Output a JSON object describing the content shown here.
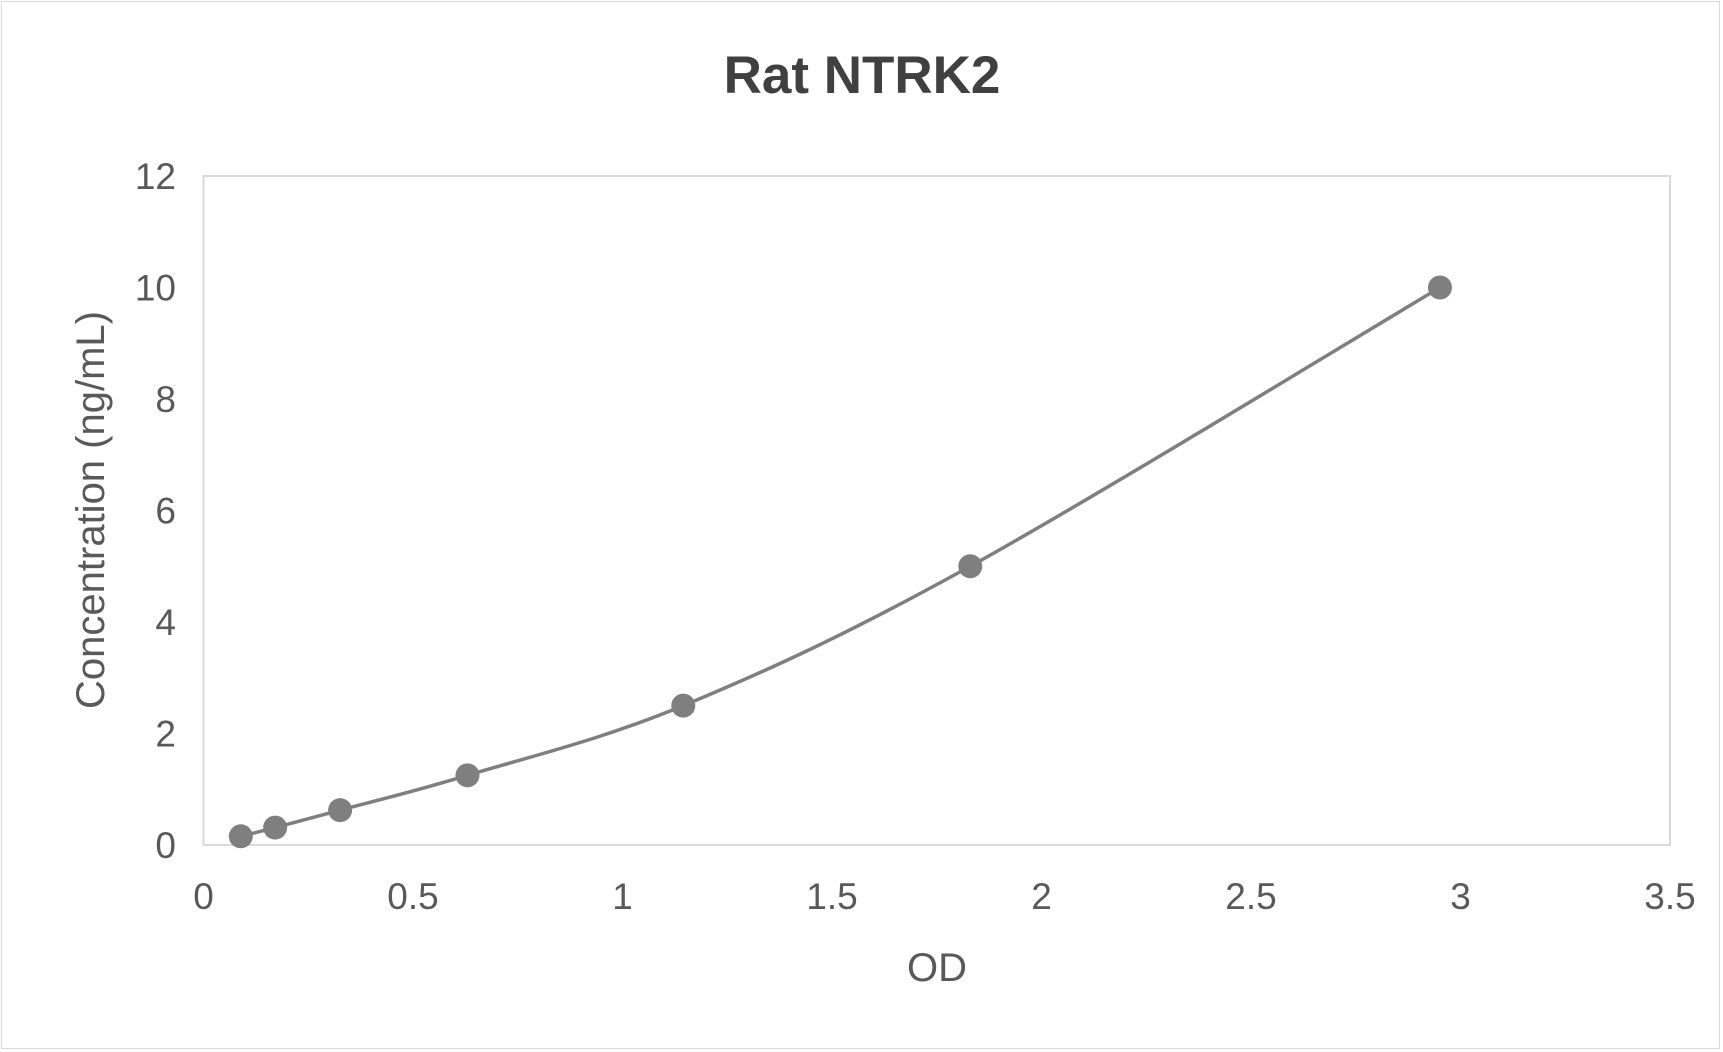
{
  "chart_data": {
    "type": "scatter",
    "title": "Rat NTRK2",
    "xlabel": "OD",
    "ylabel": "Concentration (ng/mL)",
    "xlim": [
      0,
      3.5
    ],
    "ylim": [
      0,
      12
    ],
    "xticks": [
      "0",
      "0.5",
      "1",
      "1.5",
      "2",
      "2.5",
      "3",
      "3.5"
    ],
    "yticks": [
      "0",
      "2",
      "4",
      "6",
      "8",
      "10",
      "12"
    ],
    "grid": false,
    "legend": "none",
    "series": [
      {
        "name": "Standard curve",
        "color": "#7f7f7f",
        "smooth_line": true,
        "x": [
          0.089,
          0.171,
          0.326,
          0.63,
          1.145,
          1.83,
          2.951
        ],
        "y": [
          0.156,
          0.3125,
          0.625,
          1.25,
          2.5,
          5,
          10
        ]
      }
    ]
  }
}
